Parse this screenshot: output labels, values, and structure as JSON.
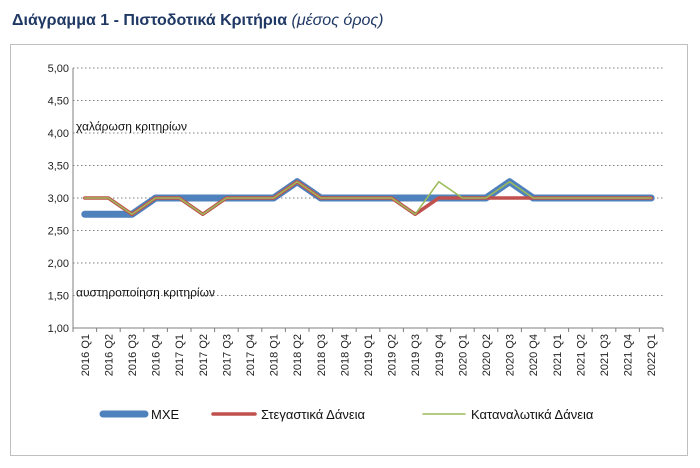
{
  "page": {
    "title_main": "Διάγραμμα 1 - Πιστοδοτικά Κριτήρια ",
    "title_sub": "(μέσος όρος)"
  },
  "chart_data": {
    "type": "line",
    "title": "",
    "xlabel": "",
    "ylabel": "",
    "ylim": [
      1.0,
      5.0
    ],
    "y_ticks": [
      "1,00",
      "1,50",
      "2,00",
      "2,50",
      "3,00",
      "3,50",
      "4,00",
      "4,50",
      "5,00"
    ],
    "grid": true,
    "legend_position": "bottom",
    "categories": [
      "2016 Q1",
      "2016 Q2",
      "2016 Q3",
      "2016 Q4",
      "2017 Q1",
      "2017 Q2",
      "2017 Q3",
      "2017 Q4",
      "2018 Q1",
      "2018 Q2",
      "2018 Q3",
      "2018 Q4",
      "2019 Q1",
      "2019 Q2",
      "2019 Q3",
      "2019 Q4",
      "2020 Q1",
      "2020 Q2",
      "2020 Q3",
      "2020 Q4",
      "2021 Q1",
      "2021 Q2",
      "2021 Q3",
      "2021 Q4",
      "2022 Q1"
    ],
    "series": [
      {
        "name": "ΜΧΕ",
        "color": "#4f81bd",
        "values": [
          2.75,
          2.75,
          2.75,
          3.0,
          3.0,
          3.0,
          3.0,
          3.0,
          3.0,
          3.25,
          3.0,
          3.0,
          3.0,
          3.0,
          3.0,
          3.0,
          3.0,
          3.0,
          3.25,
          3.0,
          3.0,
          3.0,
          3.0,
          3.0,
          3.0
        ]
      },
      {
        "name": "Στεγαστικά Δάνεια",
        "color": "#c0504d",
        "values": [
          3.0,
          3.0,
          2.75,
          3.0,
          3.0,
          2.75,
          3.0,
          3.0,
          3.0,
          3.25,
          3.0,
          3.0,
          3.0,
          3.0,
          2.75,
          3.0,
          3.0,
          3.0,
          3.0,
          3.0,
          3.0,
          3.0,
          3.0,
          3.0,
          3.0
        ]
      },
      {
        "name": "Καταναλωτικά Δάνεια",
        "color": "#9bbb59",
        "values": [
          3.0,
          3.0,
          2.75,
          3.0,
          3.0,
          2.75,
          3.0,
          3.0,
          3.0,
          3.25,
          3.0,
          3.0,
          3.0,
          3.0,
          2.75,
          3.25,
          3.0,
          3.0,
          3.25,
          3.0,
          3.0,
          3.0,
          3.0,
          3.0,
          3.0
        ]
      }
    ],
    "annotations": [
      {
        "text": "χαλάρωση κριτηρίων",
        "y": 4.1
      },
      {
        "text": "αυστηροποίηση κριτηρίων",
        "y": 1.55
      }
    ]
  }
}
